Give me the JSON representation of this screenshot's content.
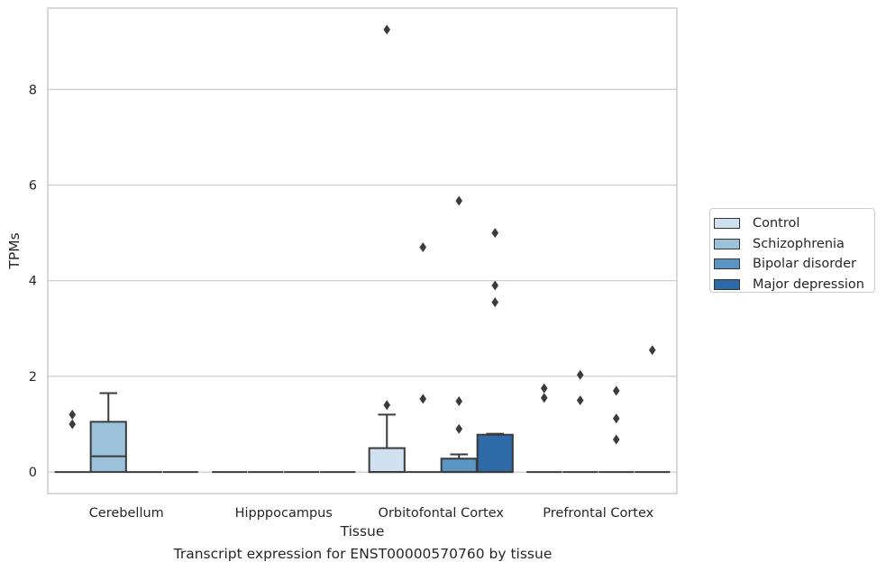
{
  "chart_data": {
    "type": "boxplot",
    "title": "Transcript expression for ENST00000570760 by tissue",
    "xlabel": "Tissue",
    "ylabel": "TPMs",
    "ylim": [
      -0.45,
      9.7
    ],
    "yticks": [
      0,
      2,
      4,
      6,
      8
    ],
    "grid": "horizontal",
    "legend_position": "right",
    "categories": [
      "Cerebellum",
      "Hipppocampus",
      "Orbitofontal Cortex",
      "Prefrontal Cortex"
    ],
    "series": [
      {
        "name": "Control",
        "color": "#cfe0f0",
        "boxes": [
          {
            "q1": 0,
            "median": 0,
            "q3": 0,
            "whisker_low": 0,
            "whisker_high": 0,
            "outliers": [
              1.0,
              1.2
            ]
          },
          {
            "q1": 0,
            "median": 0,
            "q3": 0,
            "whisker_low": 0,
            "whisker_high": 0,
            "outliers": []
          },
          {
            "q1": 0,
            "median": 0,
            "q3": 0.5,
            "whisker_low": 0,
            "whisker_high": 1.2,
            "outliers": [
              1.4,
              9.25
            ]
          },
          {
            "q1": 0,
            "median": 0,
            "q3": 0,
            "whisker_low": 0,
            "whisker_high": 0,
            "outliers": [
              1.55,
              1.75
            ]
          }
        ]
      },
      {
        "name": "Schizophrenia",
        "color": "#9bc1db",
        "boxes": [
          {
            "q1": 0,
            "median": 0.33,
            "q3": 1.05,
            "whisker_low": 0,
            "whisker_high": 1.65,
            "outliers": []
          },
          {
            "q1": 0,
            "median": 0,
            "q3": 0,
            "whisker_low": 0,
            "whisker_high": 0,
            "outliers": []
          },
          {
            "q1": 0,
            "median": 0,
            "q3": 0,
            "whisker_low": 0,
            "whisker_high": 0,
            "outliers": [
              1.53,
              4.7
            ]
          },
          {
            "q1": 0,
            "median": 0,
            "q3": 0,
            "whisker_low": 0,
            "whisker_high": 0,
            "outliers": [
              1.5,
              2.03
            ]
          }
        ]
      },
      {
        "name": "Bipolar disorder",
        "color": "#5a95c4",
        "boxes": [
          {
            "q1": 0,
            "median": 0,
            "q3": 0,
            "whisker_low": 0,
            "whisker_high": 0,
            "outliers": []
          },
          {
            "q1": 0,
            "median": 0,
            "q3": 0,
            "whisker_low": 0,
            "whisker_high": 0,
            "outliers": []
          },
          {
            "q1": 0,
            "median": 0,
            "q3": 0.28,
            "whisker_low": 0,
            "whisker_high": 0.37,
            "outliers": [
              0.9,
              1.48,
              5.67
            ]
          },
          {
            "q1": 0,
            "median": 0,
            "q3": 0,
            "whisker_low": 0,
            "whisker_high": 0,
            "outliers": [
              0.68,
              1.12,
              1.7
            ]
          }
        ]
      },
      {
        "name": "Major depression",
        "color": "#2e6aa8",
        "boxes": [
          {
            "q1": 0,
            "median": 0,
            "q3": 0,
            "whisker_low": 0,
            "whisker_high": 0,
            "outliers": []
          },
          {
            "q1": 0,
            "median": 0,
            "q3": 0,
            "whisker_low": 0,
            "whisker_high": 0,
            "outliers": []
          },
          {
            "q1": 0,
            "median": 0,
            "q3": 0.78,
            "whisker_low": 0,
            "whisker_high": 0.8,
            "outliers": [
              3.55,
              3.9,
              5.0
            ]
          },
          {
            "q1": 0,
            "median": 0,
            "q3": 0,
            "whisker_low": 0,
            "whisker_high": 0,
            "outliers": [
              2.55
            ]
          }
        ]
      }
    ]
  }
}
